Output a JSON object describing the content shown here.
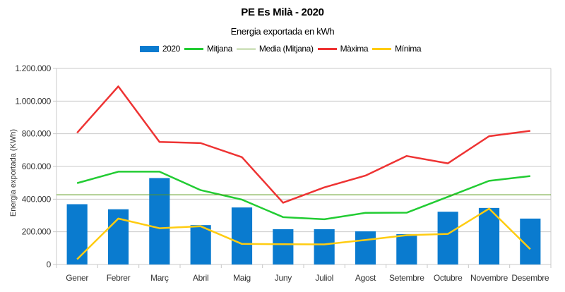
{
  "chart_data": {
    "type": "bar",
    "title": "PE Es Milà - 2020",
    "subtitle": "Energia exportada en kWh",
    "xlabel": "",
    "ylabel": "Energia exportada (KWh)",
    "ylim": [
      0,
      1200000
    ],
    "yticks": [
      0,
      200000,
      400000,
      600000,
      800000,
      1000000,
      1200000
    ],
    "ytick_labels": [
      "0",
      "200.000",
      "400.000",
      "600.000",
      "800.000",
      "1.000.000",
      "1.200.000"
    ],
    "grid": true,
    "legend_position": "top",
    "categories": [
      "Gener",
      "Febrer",
      "Març",
      "Abril",
      "Maig",
      "Juny",
      "Juliol",
      "Agost",
      "Setembre",
      "Octubre",
      "Novembre",
      "Desembre"
    ],
    "series": [
      {
        "name": "2020",
        "kind": "bar",
        "color": "#0a7bcf",
        "values": [
          369000,
          338000,
          529000,
          241000,
          349000,
          216000,
          216000,
          203000,
          186000,
          323000,
          346000,
          281000
        ]
      },
      {
        "name": "Mitjana",
        "kind": "line",
        "color": "#22cc33",
        "values": [
          498000,
          568000,
          568000,
          455000,
          397000,
          290000,
          277000,
          316000,
          317000,
          414000,
          512000,
          541000
        ]
      },
      {
        "name": "Media (Mitjana)",
        "kind": "hline",
        "color": "#5a9a1a",
        "value": 427000
      },
      {
        "name": "Màxima",
        "kind": "line",
        "color": "#ee3333",
        "values": [
          806000,
          1090000,
          750000,
          743000,
          657000,
          378000,
          472000,
          544000,
          664000,
          619000,
          785000,
          818000
        ]
      },
      {
        "name": "Mínima",
        "kind": "line",
        "color": "#ffcc11",
        "values": [
          32000,
          281000,
          222000,
          234000,
          126000,
          124000,
          123000,
          150000,
          179000,
          187000,
          342000,
          94000
        ]
      }
    ]
  }
}
